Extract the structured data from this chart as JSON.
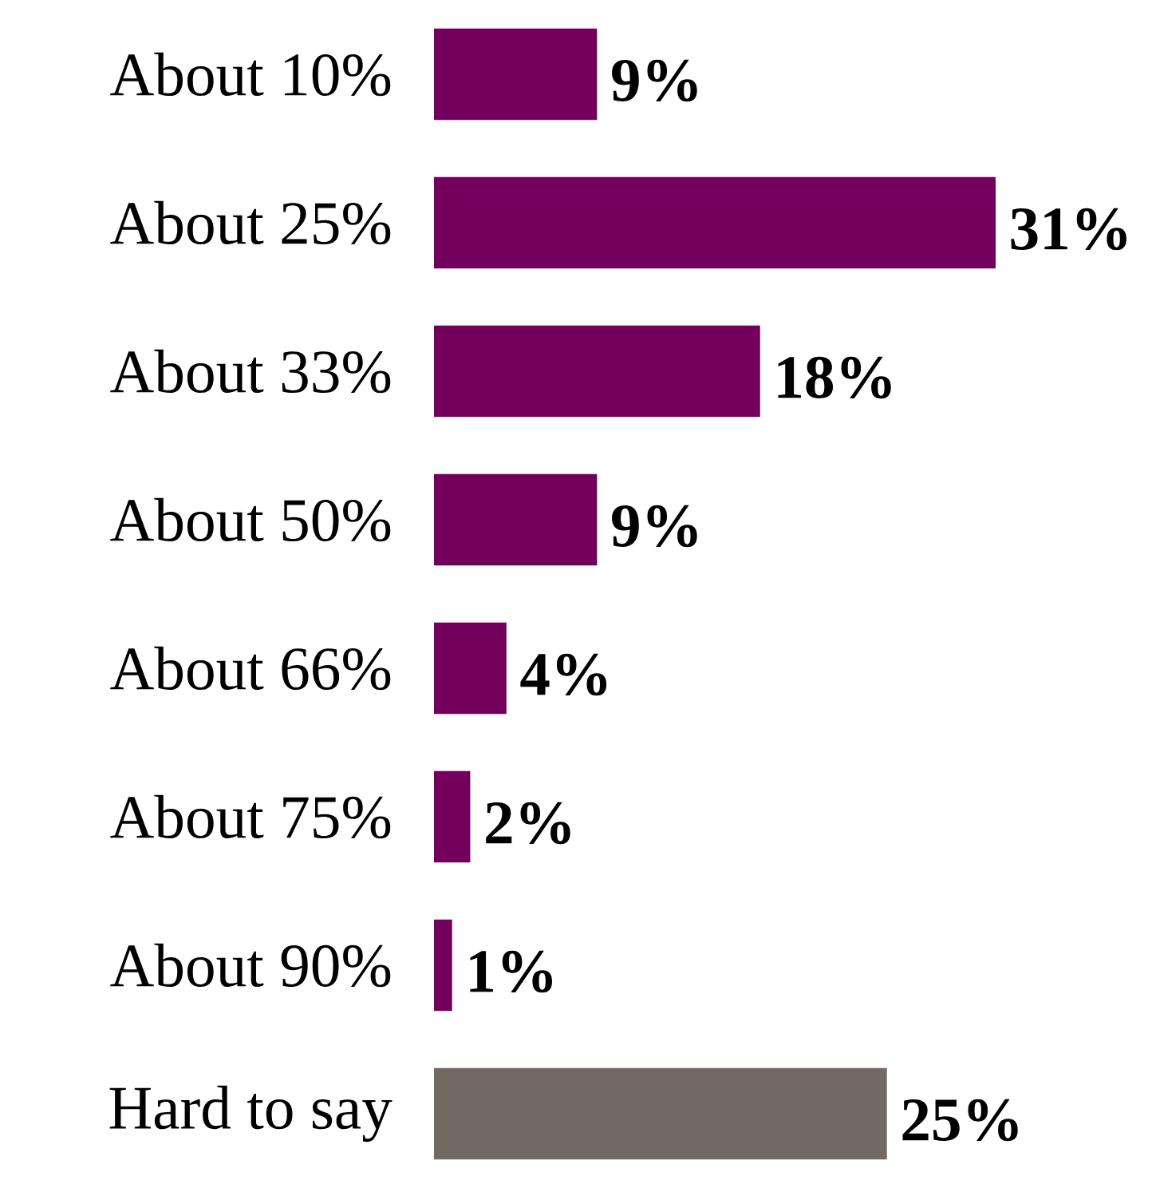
{
  "chart_data": {
    "type": "bar",
    "orientation": "horizontal",
    "categories": [
      "About 10%",
      "About 25%",
      "About 33%",
      "About 50%",
      "About 66%",
      "About 75%",
      "About 90%",
      "Hard to say"
    ],
    "values": [
      9,
      31,
      18,
      9,
      4,
      2,
      1,
      25
    ],
    "colors": [
      "#73005c",
      "#73005c",
      "#73005c",
      "#73005c",
      "#73005c",
      "#73005c",
      "#73005c",
      "#736963"
    ],
    "value_labels": [
      "9%",
      "31%",
      "18%",
      "9%",
      "4%",
      "2%",
      "1%",
      "25%"
    ]
  }
}
